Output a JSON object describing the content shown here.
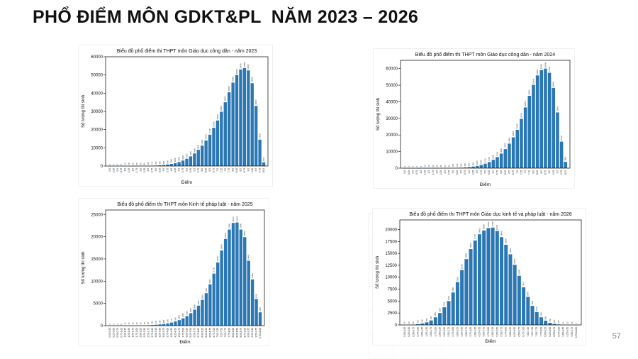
{
  "slide": {
    "title": "PHỔ ĐIỂM MÔN GDKT&PL  NĂM 2023 – 2026",
    "page_number": "57"
  },
  "colors": {
    "bar": "#2a77b4",
    "frame": "#000000",
    "background": "#ffffff"
  },
  "chart_data": [
    {
      "type": "bar",
      "title": "Biểu đồ phổ điểm thi THPT môn Giáo dục công dân - năm 2023",
      "xlabel": "Điểm",
      "ylabel": "Số lượng thí sinh",
      "ylim": [
        0,
        60000
      ],
      "yticks": [
        0,
        10000,
        20000,
        30000,
        40000,
        50000,
        60000
      ],
      "categories": [
        "0.0",
        "0.25",
        "0.5",
        "0.75",
        "1.0",
        "1.25",
        "1.5",
        "1.75",
        "2.0",
        "2.25",
        "2.5",
        "2.75",
        "3.0",
        "3.25",
        "3.5",
        "3.75",
        "4.0",
        "4.25",
        "4.5",
        "4.75",
        "5.0",
        "5.25",
        "5.5",
        "5.75",
        "6.0",
        "6.25",
        "6.5",
        "6.75",
        "7.0",
        "7.25",
        "7.5",
        "7.75",
        "8.0",
        "8.25",
        "8.5",
        "8.75",
        "9.0",
        "9.25",
        "9.5",
        "9.75",
        "10.0"
      ],
      "values": [
        5,
        4,
        6,
        8,
        12,
        18,
        25,
        35,
        55,
        80,
        110,
        170,
        250,
        380,
        550,
        800,
        1150,
        1600,
        2200,
        3000,
        4000,
        5300,
        6900,
        8900,
        11200,
        14000,
        17200,
        21000,
        25000,
        29800,
        35000,
        40500,
        45800,
        50000,
        53000,
        53800,
        52500,
        45500,
        33000,
        14500,
        2000
      ],
      "grid": false
    },
    {
      "type": "bar",
      "title": "Biểu đồ phổ điểm thi THPT môn Giáo dục công dân - năm 2024",
      "xlabel": "Điểm",
      "ylabel": "Số lượng thí sinh",
      "ylim": [
        0,
        65000
      ],
      "yticks": [
        0,
        10000,
        20000,
        30000,
        40000,
        50000,
        60000
      ],
      "categories": [
        "0.0",
        "0.25",
        "0.5",
        "0.75",
        "1.0",
        "1.25",
        "1.5",
        "1.75",
        "2.0",
        "2.25",
        "2.5",
        "2.75",
        "3.0",
        "3.25",
        "3.5",
        "3.75",
        "4.0",
        "4.25",
        "4.5",
        "4.75",
        "5.0",
        "5.25",
        "5.5",
        "5.75",
        "6.0",
        "6.25",
        "6.5",
        "6.75",
        "7.0",
        "7.25",
        "7.5",
        "7.75",
        "8.0",
        "8.25",
        "8.5",
        "8.75",
        "9.0",
        "9.25",
        "9.5",
        "9.75",
        "10.0"
      ],
      "values": [
        3,
        3,
        4,
        5,
        8,
        10,
        15,
        22,
        30,
        45,
        65,
        95,
        140,
        210,
        310,
        450,
        650,
        950,
        1350,
        1900,
        2700,
        3700,
        5000,
        6700,
        8800,
        11500,
        14800,
        18600,
        23100,
        29700,
        36600,
        43600,
        50200,
        55900,
        59100,
        60000,
        57500,
        48400,
        33600,
        16000,
        3800
      ],
      "grid": false
    },
    {
      "type": "bar",
      "title": "Biểu đồ phổ điểm thi THPT môn Kinh tế pháp luật - năm 2025",
      "xlabel": "Điểm",
      "ylabel": "Số lượng thí sinh",
      "ylim": [
        0,
        26000
      ],
      "yticks": [
        0,
        5000,
        10000,
        15000,
        20000,
        25000
      ],
      "categories": [
        "0.00-0.25",
        "0.25-0.50",
        "0.50-0.75",
        "0.75-1.00",
        "1.00-1.25",
        "1.25-1.50",
        "1.50-1.75",
        "1.75-2.00",
        "2.00-2.25",
        "2.25-2.50",
        "2.50-2.75",
        "2.75-3.00",
        "3.00-3.25",
        "3.25-3.50",
        "3.50-3.75",
        "3.75-4.00",
        "4.00-4.25",
        "4.25-4.50",
        "4.50-4.75",
        "4.75-5.00",
        "5.00-5.25",
        "5.25-5.50",
        "5.50-5.75",
        "5.75-6.00",
        "6.00-6.25",
        "6.25-6.50",
        "6.50-6.75",
        "6.75-7.00",
        "7.00-7.25",
        "7.25-7.50",
        "7.50-7.75",
        "7.75-8.00",
        "8.00-8.25",
        "8.25-8.50",
        "8.50-8.75",
        "8.75-9.00",
        "9.00-9.25",
        "9.25-9.50",
        "9.50-9.75",
        "9.75-10.00"
      ],
      "values": [
        5,
        5,
        5,
        8,
        10,
        14,
        20,
        30,
        45,
        65,
        95,
        140,
        200,
        280,
        380,
        520,
        700,
        950,
        1250,
        1650,
        2150,
        2800,
        3600,
        4500,
        5800,
        7300,
        9300,
        11700,
        14200,
        16900,
        19500,
        21600,
        23100,
        23200,
        21600,
        19900,
        14600,
        10400,
        6000,
        3000
      ],
      "grid": false
    },
    {
      "type": "bar",
      "title": "Biểu đồ phổ điểm thi THPT môn Giáo dục kinh tế và pháp luật - năm 2026",
      "xlabel": "Điểm",
      "ylabel": "Số lượng thí sinh",
      "ylim": [
        0,
        22000
      ],
      "yticks": [
        0,
        2500,
        5000,
        7500,
        10000,
        12500,
        15000,
        17500,
        20000
      ],
      "categories": [
        "0.00-0.25",
        "0.25-0.50",
        "0.50-0.75",
        "0.75-1.00",
        "1.00-1.25",
        "1.25-1.50",
        "1.50-1.75",
        "1.75-2.00",
        "2.00-2.25",
        "2.25-2.50",
        "2.50-2.75",
        "2.75-3.00",
        "3.00-3.25",
        "3.25-3.50",
        "3.50-3.75",
        "3.75-4.00",
        "4.00-4.25",
        "4.25-4.50",
        "4.50-4.75",
        "4.75-5.00",
        "5.00-5.25",
        "5.25-5.50",
        "5.50-5.75",
        "5.75-6.00",
        "6.00-6.25",
        "6.25-6.50",
        "6.50-6.75",
        "6.75-7.00",
        "7.00-7.25",
        "7.25-7.50",
        "7.50-7.75",
        "7.75-8.00",
        "8.00-8.25",
        "8.25-8.50",
        "8.50-8.75",
        "8.75-9.00",
        "9.00-9.25",
        "9.25-9.50",
        "9.50-9.75",
        "9.75-10.00"
      ],
      "values": [
        20,
        40,
        80,
        150,
        300,
        550,
        950,
        1600,
        2500,
        3700,
        5000,
        6800,
        9000,
        11500,
        13800,
        15900,
        17700,
        19000,
        19800,
        20300,
        20400,
        19700,
        18400,
        16800,
        14800,
        12600,
        10300,
        7900,
        5900,
        4000,
        2700,
        1600,
        900,
        450,
        220,
        100,
        50,
        25,
        10,
        5
      ],
      "grid": false
    }
  ]
}
